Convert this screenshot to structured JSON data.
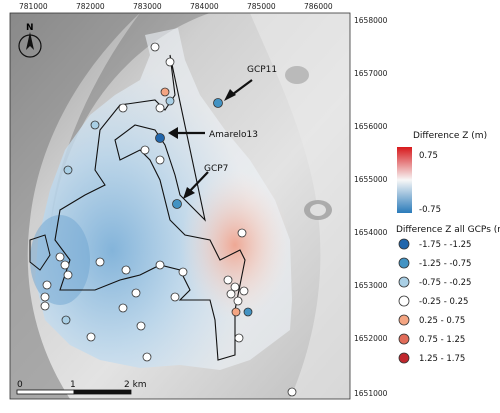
{
  "top_ticks": [
    "781000",
    "782000",
    "783000",
    "784000",
    "785000",
    "786000"
  ],
  "right_ticks": [
    "1658000",
    "1657000",
    "1656000",
    "1655000",
    "1654000",
    "1653000",
    "1652000",
    "1651000"
  ],
  "north_arrow": {
    "label": "N"
  },
  "annotations": [
    {
      "label": "GCP11"
    },
    {
      "label": "Amarelo13"
    },
    {
      "label": "GCP7"
    }
  ],
  "scalebar": {
    "labels": [
      "0",
      "1",
      "2 km"
    ]
  },
  "continuous_legend": {
    "title": "Difference Z (m)",
    "max_label": "0.75",
    "min_label": "-0.75",
    "colors": {
      "low": "#2b7bba",
      "mid": "#f7f7f7",
      "high": "#d7191c"
    }
  },
  "classes_legend": {
    "title": "Difference Z all GCPs (m)",
    "items": [
      {
        "label": "-1.75 - -1.25",
        "color": "#2166ac"
      },
      {
        "label": "-1.25 - -0.75",
        "color": "#4393c3"
      },
      {
        "label": "-0.75 - -0.25",
        "color": "#a9cfe5"
      },
      {
        "label": "-0.25 - 0.25",
        "color": "#ffffff"
      },
      {
        "label": "0.25 - 0.75",
        "color": "#f4a582"
      },
      {
        "label": "0.75 - 1.25",
        "color": "#e16c59"
      },
      {
        "label": "1.25 - 1.75",
        "color": "#c0272d"
      }
    ]
  }
}
